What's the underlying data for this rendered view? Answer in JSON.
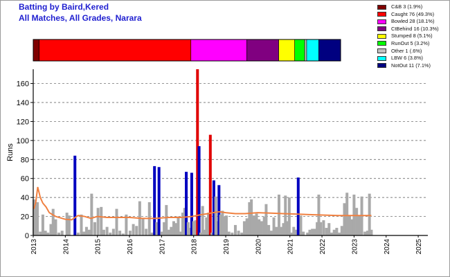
{
  "header": {
    "title": "Batting by Baird,Kered",
    "subtitle": "All Matches, All Grades, Narara"
  },
  "legend": [
    {
      "label": "C&B 3 (1.9%)",
      "color": "#800000"
    },
    {
      "label": "Caught 76 (49.3%)",
      "color": "#ff0000"
    },
    {
      "label": "Bowled 28 (18.1%)",
      "color": "#ff00ff"
    },
    {
      "label": "CtBehind 16 (10.3%)",
      "color": "#800080"
    },
    {
      "label": "Stumped 8 (5.1%)",
      "color": "#ffff00"
    },
    {
      "label": "RunOut 5 (3.2%)",
      "color": "#00ff00"
    },
    {
      "label": "Other 1 (.6%)",
      "color": "#c0c0c0"
    },
    {
      "label": "LBW 6 (3.8%)",
      "color": "#00ffff"
    },
    {
      "label": "NotOut 11 (7.1%)",
      "color": "#000080"
    }
  ],
  "chart_data": [
    {
      "type": "bar",
      "name": "dismissal-breakdown",
      "categories": [
        "C&B",
        "Caught",
        "Bowled",
        "CtBehind",
        "Stumped",
        "RunOut",
        "Other",
        "LBW",
        "NotOut"
      ],
      "values": [
        3,
        76,
        28,
        16,
        8,
        5,
        1,
        6,
        11
      ],
      "colors": [
        "#800000",
        "#ff0000",
        "#ff00ff",
        "#800080",
        "#ffff00",
        "#00ff00",
        "#c0c0c0",
        "#00ffff",
        "#000080"
      ]
    },
    {
      "type": "bar",
      "xlabel": "",
      "ylabel": "Runs",
      "ylim": [
        0,
        175
      ],
      "yticks": [
        0,
        20,
        40,
        60,
        80,
        100,
        120,
        140,
        160
      ],
      "xlim": [
        2013.0,
        2025.3
      ],
      "xticks": [
        "2013",
        "2014",
        "2015",
        "2016",
        "2017",
        "2018",
        "2019",
        "2020",
        "2021",
        "2022",
        "2023",
        "2024",
        "2025"
      ],
      "grid": "horizontal-dashed",
      "colors": {
        "innings": "#a9a9a9",
        "notout": "#0000c0",
        "highlight": "#e00000",
        "average": "#f08040"
      },
      "innings": [
        {
          "x": 2013.02,
          "runs": 38
        },
        {
          "x": 2013.07,
          "runs": 33
        },
        {
          "x": 2013.13,
          "runs": 35
        },
        {
          "x": 2013.22,
          "runs": 4
        },
        {
          "x": 2013.3,
          "runs": 22
        },
        {
          "x": 2013.38,
          "runs": 5
        },
        {
          "x": 2013.46,
          "runs": 3
        },
        {
          "x": 2013.55,
          "runs": 12
        },
        {
          "x": 2013.62,
          "runs": 28
        },
        {
          "x": 2013.7,
          "runs": 17
        },
        {
          "x": 2013.8,
          "runs": 3
        },
        {
          "x": 2013.9,
          "runs": 5
        },
        {
          "x": 2014.05,
          "runs": 24
        },
        {
          "x": 2014.12,
          "runs": 21
        },
        {
          "x": 2014.3,
          "runs": 84,
          "notout": true
        },
        {
          "x": 2014.4,
          "runs": 3
        },
        {
          "x": 2014.5,
          "runs": 22
        },
        {
          "x": 2014.58,
          "runs": 4
        },
        {
          "x": 2014.66,
          "runs": 9
        },
        {
          "x": 2014.74,
          "runs": 6
        },
        {
          "x": 2014.82,
          "runs": 44
        },
        {
          "x": 2014.92,
          "runs": 14
        },
        {
          "x": 2015.02,
          "runs": 29
        },
        {
          "x": 2015.12,
          "runs": 30
        },
        {
          "x": 2015.2,
          "runs": 6
        },
        {
          "x": 2015.3,
          "runs": 9
        },
        {
          "x": 2015.4,
          "runs": 3
        },
        {
          "x": 2015.5,
          "runs": 7
        },
        {
          "x": 2015.6,
          "runs": 28
        },
        {
          "x": 2015.7,
          "runs": 5
        },
        {
          "x": 2015.8,
          "runs": 2
        },
        {
          "x": 2015.9,
          "runs": 22
        },
        {
          "x": 2016.02,
          "runs": 5
        },
        {
          "x": 2016.12,
          "runs": 12
        },
        {
          "x": 2016.22,
          "runs": 10
        },
        {
          "x": 2016.32,
          "runs": 36
        },
        {
          "x": 2016.42,
          "runs": 18
        },
        {
          "x": 2016.52,
          "runs": 7
        },
        {
          "x": 2016.62,
          "runs": 35
        },
        {
          "x": 2016.7,
          "runs": 3
        },
        {
          "x": 2016.78,
          "runs": 73,
          "notout": true
        },
        {
          "x": 2016.85,
          "runs": 14
        },
        {
          "x": 2016.92,
          "runs": 72,
          "notout": true
        },
        {
          "x": 2017.0,
          "runs": 4
        },
        {
          "x": 2017.08,
          "runs": 14
        },
        {
          "x": 2017.15,
          "runs": 32
        },
        {
          "x": 2017.22,
          "runs": 6
        },
        {
          "x": 2017.3,
          "runs": 9
        },
        {
          "x": 2017.38,
          "runs": 15
        },
        {
          "x": 2017.45,
          "runs": 13
        },
        {
          "x": 2017.52,
          "runs": 20
        },
        {
          "x": 2017.6,
          "runs": 4
        },
        {
          "x": 2017.66,
          "runs": 24
        },
        {
          "x": 2017.72,
          "runs": 29
        },
        {
          "x": 2017.77,
          "runs": 67,
          "notout": true
        },
        {
          "x": 2017.83,
          "runs": 14
        },
        {
          "x": 2017.88,
          "runs": 8
        },
        {
          "x": 2017.94,
          "runs": 66,
          "notout": true
        },
        {
          "x": 2018.0,
          "runs": 15
        },
        {
          "x": 2018.06,
          "runs": 16
        },
        {
          "x": 2018.12,
          "runs": 175,
          "highlight": true
        },
        {
          "x": 2018.17,
          "runs": 94,
          "notout": true
        },
        {
          "x": 2018.22,
          "runs": 3
        },
        {
          "x": 2018.28,
          "runs": 31
        },
        {
          "x": 2018.34,
          "runs": 6
        },
        {
          "x": 2018.4,
          "runs": 19
        },
        {
          "x": 2018.46,
          "runs": 24
        },
        {
          "x": 2018.52,
          "runs": 106,
          "highlight": true
        },
        {
          "x": 2018.57,
          "runs": 3
        },
        {
          "x": 2018.63,
          "runs": 58,
          "notout": true
        },
        {
          "x": 2018.69,
          "runs": 41
        },
        {
          "x": 2018.74,
          "runs": 15
        },
        {
          "x": 2018.79,
          "runs": 53,
          "notout": true
        },
        {
          "x": 2018.84,
          "runs": 22
        },
        {
          "x": 2018.9,
          "runs": 26
        },
        {
          "x": 2018.96,
          "runs": 20
        },
        {
          "x": 2019.02,
          "runs": 21
        },
        {
          "x": 2019.1,
          "runs": 4
        },
        {
          "x": 2019.2,
          "runs": 3
        },
        {
          "x": 2019.3,
          "runs": 11
        },
        {
          "x": 2019.4,
          "runs": 5
        },
        {
          "x": 2019.5,
          "runs": 3
        },
        {
          "x": 2019.58,
          "runs": 15
        },
        {
          "x": 2019.66,
          "runs": 18
        },
        {
          "x": 2019.74,
          "runs": 35
        },
        {
          "x": 2019.8,
          "runs": 38
        },
        {
          "x": 2019.88,
          "runs": 21
        },
        {
          "x": 2019.96,
          "runs": 23
        },
        {
          "x": 2020.04,
          "runs": 17
        },
        {
          "x": 2020.12,
          "runs": 15
        },
        {
          "x": 2020.2,
          "runs": 20
        },
        {
          "x": 2020.26,
          "runs": 33
        },
        {
          "x": 2020.34,
          "runs": 11
        },
        {
          "x": 2020.42,
          "runs": 5
        },
        {
          "x": 2020.5,
          "runs": 19
        },
        {
          "x": 2020.58,
          "runs": 9
        },
        {
          "x": 2020.66,
          "runs": 43
        },
        {
          "x": 2020.74,
          "runs": 9
        },
        {
          "x": 2020.8,
          "runs": 13
        },
        {
          "x": 2020.86,
          "runs": 42
        },
        {
          "x": 2020.92,
          "runs": 15
        },
        {
          "x": 2020.98,
          "runs": 40
        },
        {
          "x": 2021.05,
          "runs": 3
        },
        {
          "x": 2021.12,
          "runs": 9
        },
        {
          "x": 2021.2,
          "runs": 6
        },
        {
          "x": 2021.26,
          "runs": 61,
          "notout": true
        },
        {
          "x": 2021.34,
          "runs": 21
        },
        {
          "x": 2021.42,
          "runs": 4
        },
        {
          "x": 2021.55,
          "runs": 3
        },
        {
          "x": 2021.62,
          "runs": 6
        },
        {
          "x": 2021.7,
          "runs": 7
        },
        {
          "x": 2021.78,
          "runs": 7
        },
        {
          "x": 2021.85,
          "runs": 14
        },
        {
          "x": 2021.9,
          "runs": 43
        },
        {
          "x": 2021.96,
          "runs": 14
        },
        {
          "x": 2022.05,
          "runs": 16
        },
        {
          "x": 2022.14,
          "runs": 8
        },
        {
          "x": 2022.22,
          "runs": 13
        },
        {
          "x": 2022.3,
          "runs": 3
        },
        {
          "x": 2022.38,
          "runs": 6
        },
        {
          "x": 2022.46,
          "runs": 8
        },
        {
          "x": 2022.54,
          "runs": 3
        },
        {
          "x": 2022.62,
          "runs": 10
        },
        {
          "x": 2022.7,
          "runs": 34
        },
        {
          "x": 2022.78,
          "runs": 45
        },
        {
          "x": 2022.86,
          "runs": 21
        },
        {
          "x": 2022.92,
          "runs": 17
        },
        {
          "x": 2023.0,
          "runs": 43
        },
        {
          "x": 2023.08,
          "runs": 29
        },
        {
          "x": 2023.16,
          "runs": 21
        },
        {
          "x": 2023.24,
          "runs": 41
        },
        {
          "x": 2023.34,
          "runs": 4
        },
        {
          "x": 2023.42,
          "runs": 5
        },
        {
          "x": 2023.48,
          "runs": 44
        },
        {
          "x": 2023.54,
          "runs": 6
        }
      ],
      "average_line": {
        "x": [
          2013.02,
          2013.08,
          2013.14,
          2013.22,
          2013.3,
          2013.4,
          2013.5,
          2013.6,
          2013.7,
          2013.8,
          2013.9,
          2014.0,
          2014.2,
          2014.4,
          2014.6,
          2014.8,
          2015.0,
          2015.3,
          2015.6,
          2016.0,
          2016.4,
          2016.8,
          2017.2,
          2017.6,
          2017.95,
          2018.1,
          2018.25,
          2018.45,
          2018.6,
          2018.8,
          2019.0,
          2019.3,
          2019.6,
          2020.0,
          2020.4,
          2020.8,
          2021.2,
          2021.6,
          2022.0,
          2022.5,
          2023.0,
          2023.54
        ],
        "y": [
          28,
          35,
          51,
          40,
          34,
          30,
          24,
          22,
          20,
          19,
          18,
          17,
          16.5,
          21,
          20,
          18,
          20,
          19,
          19,
          19,
          18,
          18,
          19,
          19,
          20,
          21,
          22,
          23,
          24,
          25,
          24,
          23,
          23,
          24,
          23.5,
          23,
          22.5,
          22,
          21.5,
          21,
          21,
          21
        ]
      }
    }
  ]
}
